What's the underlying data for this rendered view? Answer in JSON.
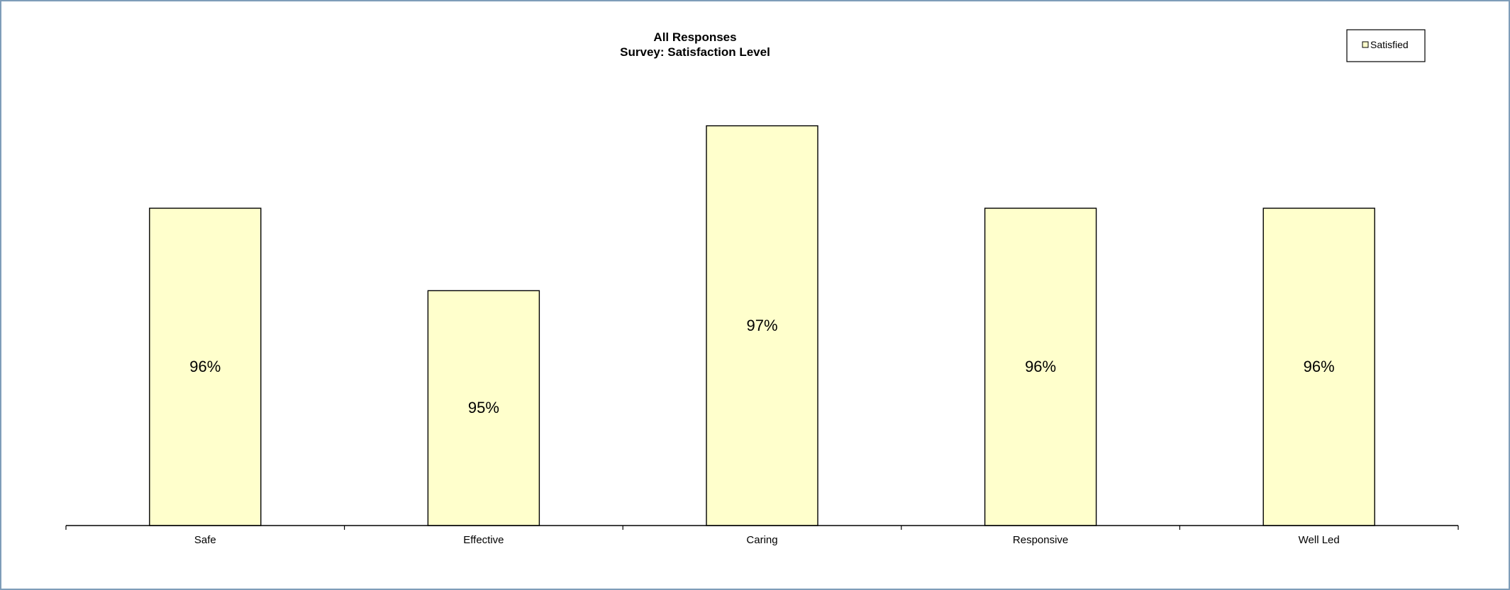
{
  "chart_data": {
    "type": "bar",
    "title": "All Responses",
    "subtitle": "Survey: Satisfaction Level",
    "categories": [
      "Safe",
      "Effective",
      "Caring",
      "Responsive",
      "Well Led"
    ],
    "series": [
      {
        "name": "Satisfied",
        "values": [
          96,
          95,
          97,
          96,
          96
        ],
        "labels": [
          "96%",
          "95%",
          "97%",
          "96%",
          "96%"
        ]
      }
    ],
    "ylim": [
      92.15,
      97.65
    ],
    "grid": false,
    "legend_position": "top-right",
    "colors": {
      "bar_fill": "#ffffcc",
      "bar_stroke": "#000000",
      "frame": "#7f9db9"
    }
  }
}
